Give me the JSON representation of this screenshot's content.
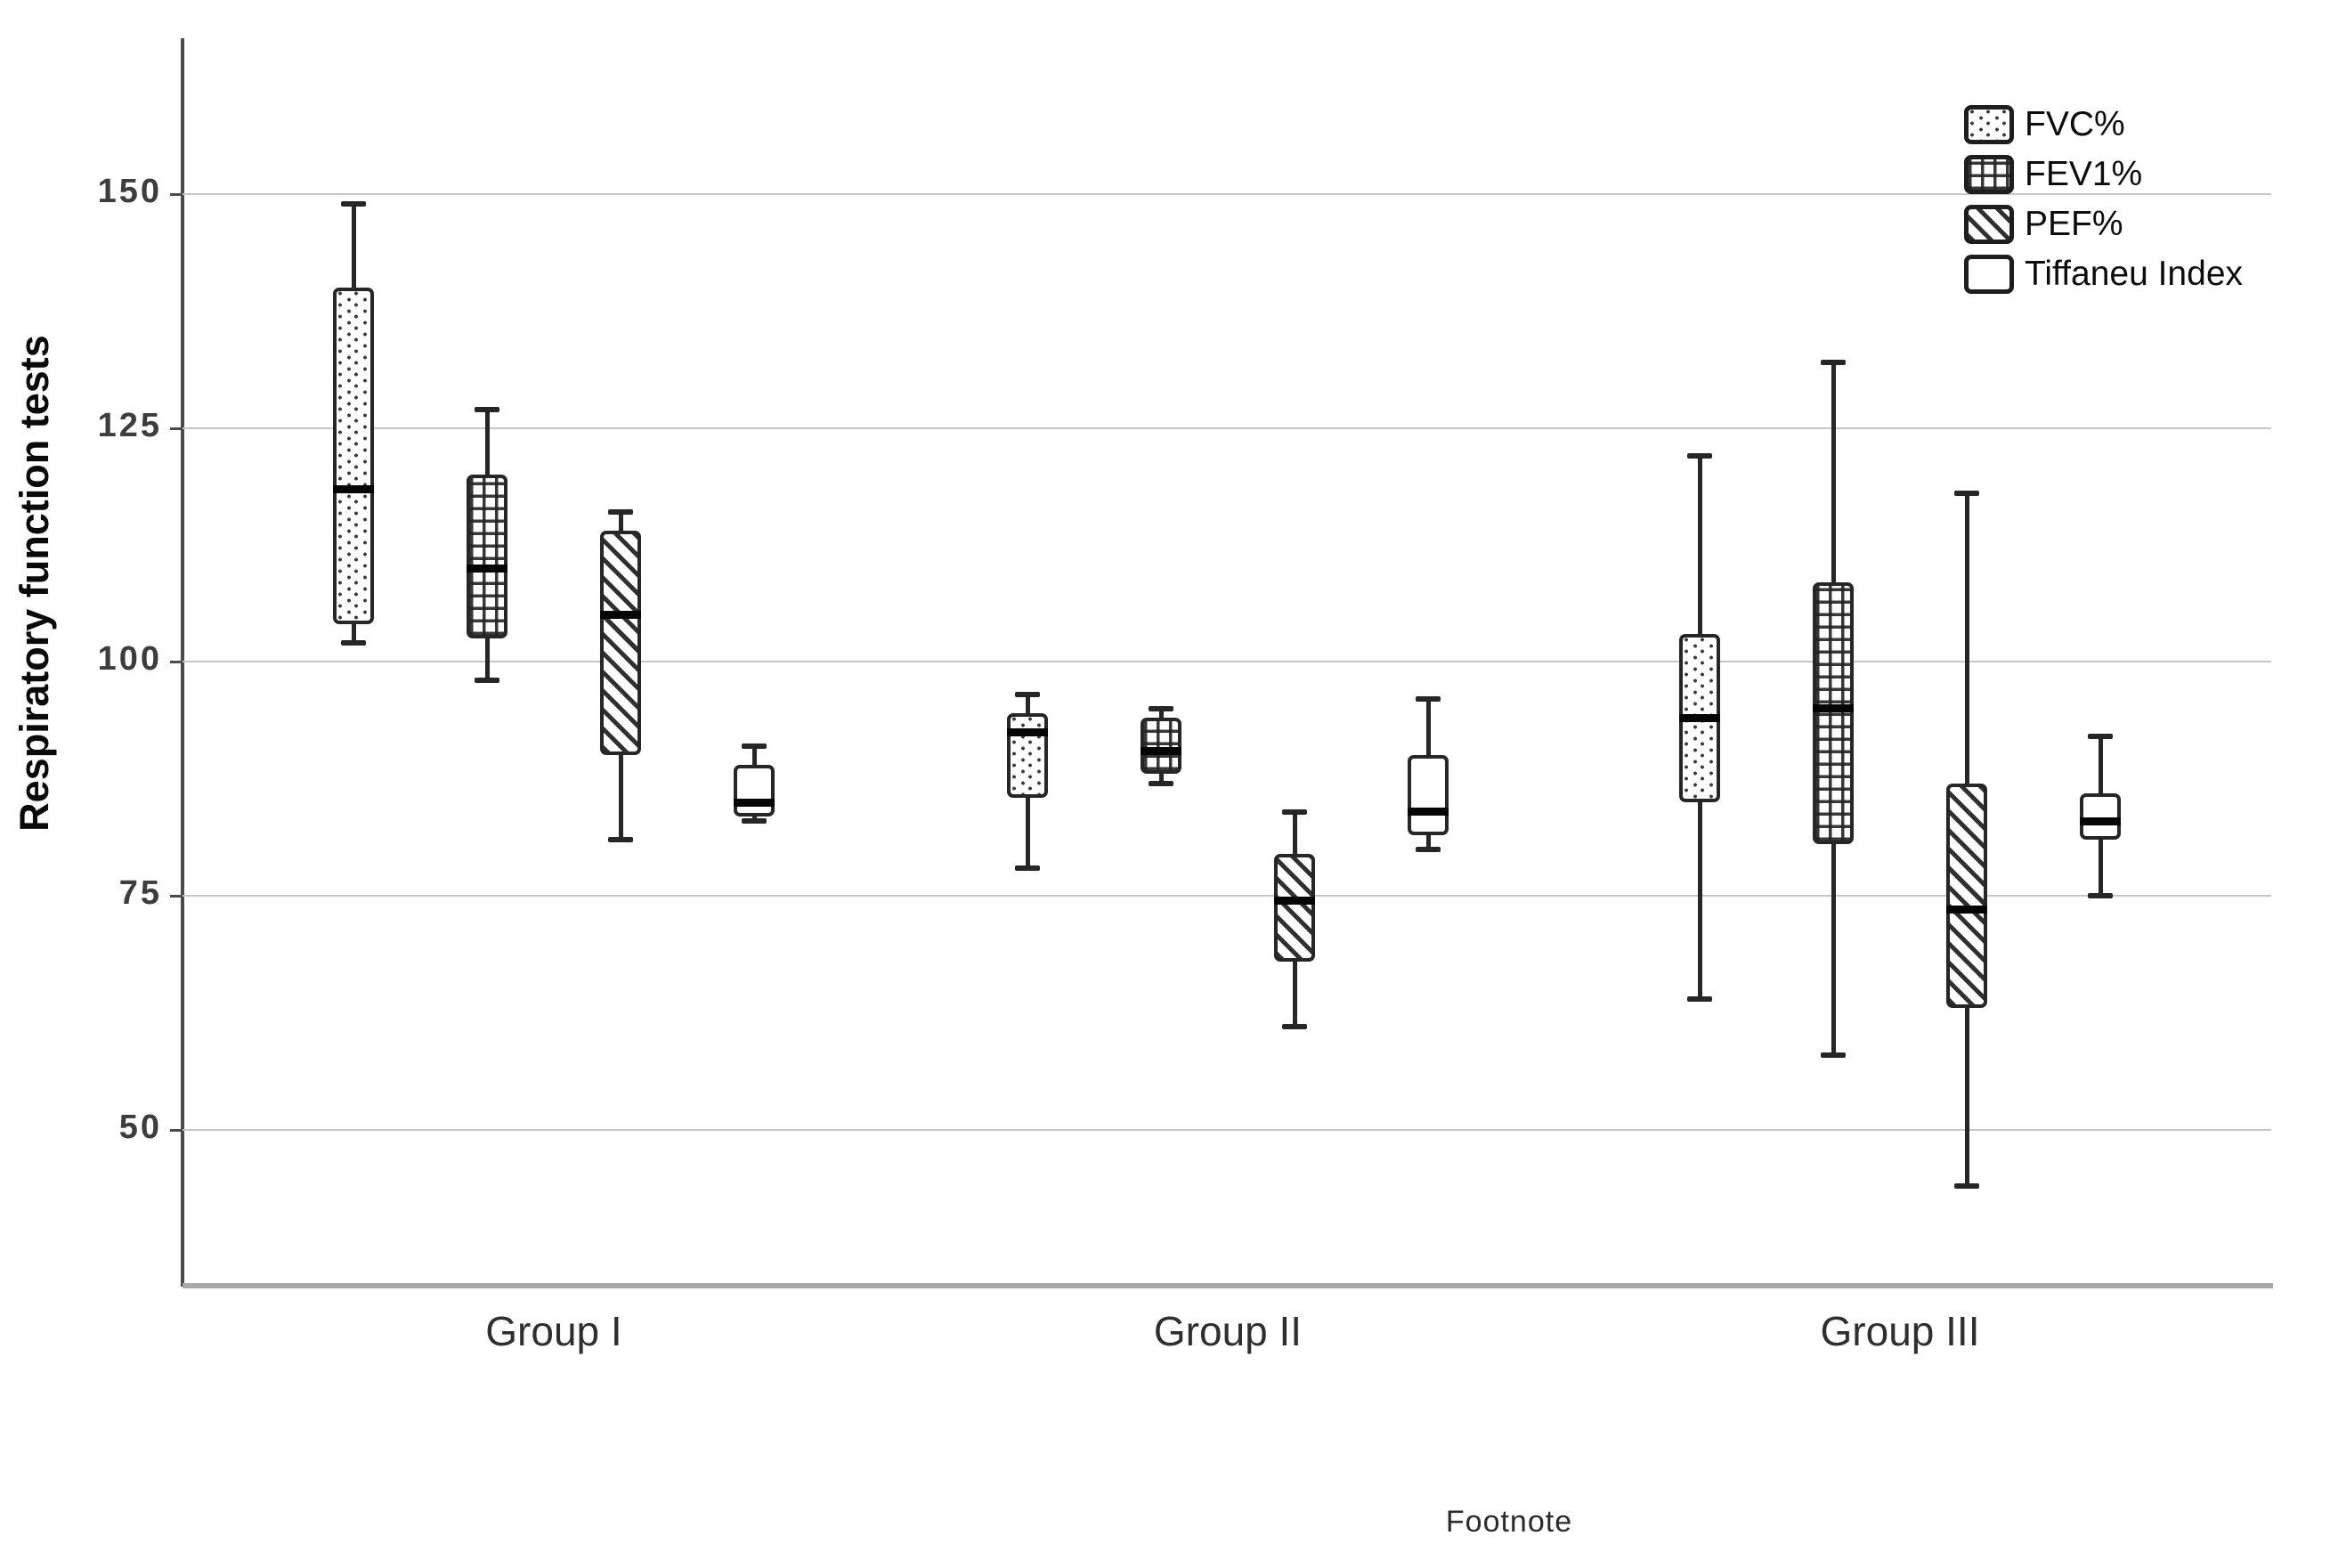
{
  "figure": {
    "y_axis_title": "Respiratory function tests",
    "x_axis_footnote": "Footnote"
  },
  "chart_data": {
    "type": "boxplot",
    "title": "",
    "xlabel": "Footnote",
    "ylabel": "Respiratory function tests",
    "ylim": [
      33,
      166
    ],
    "yticks": [
      50,
      75,
      100,
      125,
      150
    ],
    "grid": true,
    "legend_position": "top-right",
    "categories": [
      "Group I",
      "Group II",
      "Group III"
    ],
    "series": [
      {
        "name": "FVC%",
        "pattern": "dots",
        "boxes": [
          {
            "group": "Group I",
            "whisker_low": 102,
            "q1": 104,
            "median": 118.5,
            "q3": 140,
            "whisker_high": 149
          },
          {
            "group": "Group II",
            "whisker_low": 78,
            "q1": 85.5,
            "median": 92.5,
            "q3": 94.5,
            "whisker_high": 96.5
          },
          {
            "group": "Group III",
            "whisker_low": 64,
            "q1": 85,
            "median": 94,
            "q3": 103,
            "whisker_high": 122
          }
        ]
      },
      {
        "name": "FEV1%",
        "pattern": "crosshatch",
        "boxes": [
          {
            "group": "Group I",
            "whisker_low": 98,
            "q1": 102.5,
            "median": 110,
            "q3": 120,
            "whisker_high": 127
          },
          {
            "group": "Group II",
            "whisker_low": 87,
            "q1": 88,
            "median": 90.5,
            "q3": 94,
            "whisker_high": 95
          },
          {
            "group": "Group III",
            "whisker_low": 58,
            "q1": 80.5,
            "median": 95,
            "q3": 108.5,
            "whisker_high": 132
          }
        ]
      },
      {
        "name": "PEF%",
        "pattern": "diagonal",
        "boxes": [
          {
            "group": "Group I",
            "whisker_low": 81,
            "q1": 90,
            "median": 105,
            "q3": 114,
            "whisker_high": 116
          },
          {
            "group": "Group II",
            "whisker_low": 61,
            "q1": 68,
            "median": 74.5,
            "q3": 79.5,
            "whisker_high": 84
          },
          {
            "group": "Group III",
            "whisker_low": 44,
            "q1": 63,
            "median": 73.5,
            "q3": 87,
            "whisker_high": 118
          }
        ]
      },
      {
        "name": "Tiffaneu Index",
        "pattern": "plain",
        "boxes": [
          {
            "group": "Group I",
            "whisker_low": 83,
            "q1": 83.5,
            "median": 85,
            "q3": 89,
            "whisker_high": 91
          },
          {
            "group": "Group II",
            "whisker_low": 80,
            "q1": 81.5,
            "median": 84,
            "q3": 90,
            "whisker_high": 96
          },
          {
            "group": "Group III",
            "whisker_low": 75,
            "q1": 81,
            "median": 83,
            "q3": 86,
            "whisker_high": 92
          }
        ]
      }
    ]
  }
}
